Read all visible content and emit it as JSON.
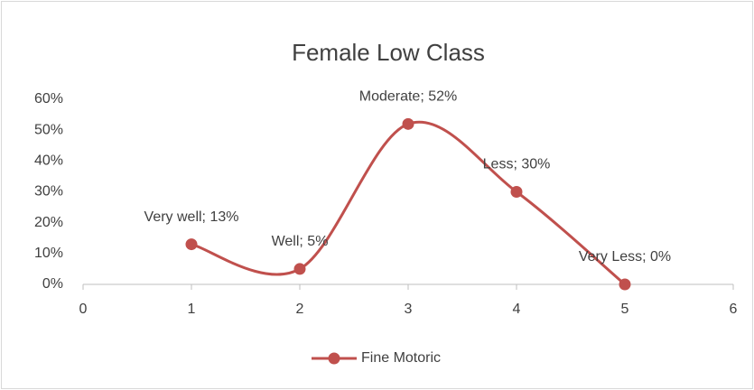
{
  "chart_data": {
    "type": "line",
    "title": "Female Low Class",
    "x": [
      1,
      2,
      3,
      4,
      5
    ],
    "series": [
      {
        "name": "Fine Motoric",
        "color": "#c0504d",
        "values": [
          13,
          5,
          52,
          30,
          0
        ],
        "value_labels": [
          "Very well; 13%",
          "Well; 5%",
          "Moderate; 52%",
          "Less; 30%",
          "Very Less; 0%"
        ]
      }
    ],
    "xlim": [
      0,
      6
    ],
    "xticks": [
      0,
      1,
      2,
      3,
      4,
      5,
      6
    ],
    "ylim": [
      0,
      60
    ],
    "yticks": [
      {
        "value": 0,
        "label": "0%"
      },
      {
        "value": 10,
        "label": "10%"
      },
      {
        "value": 20,
        "label": "20%"
      },
      {
        "value": 30,
        "label": "30%"
      },
      {
        "value": 40,
        "label": "40%"
      },
      {
        "value": 50,
        "label": "50%"
      },
      {
        "value": 60,
        "label": "60%"
      }
    ],
    "smooth": true,
    "grid": false,
    "legend": "bottom"
  }
}
